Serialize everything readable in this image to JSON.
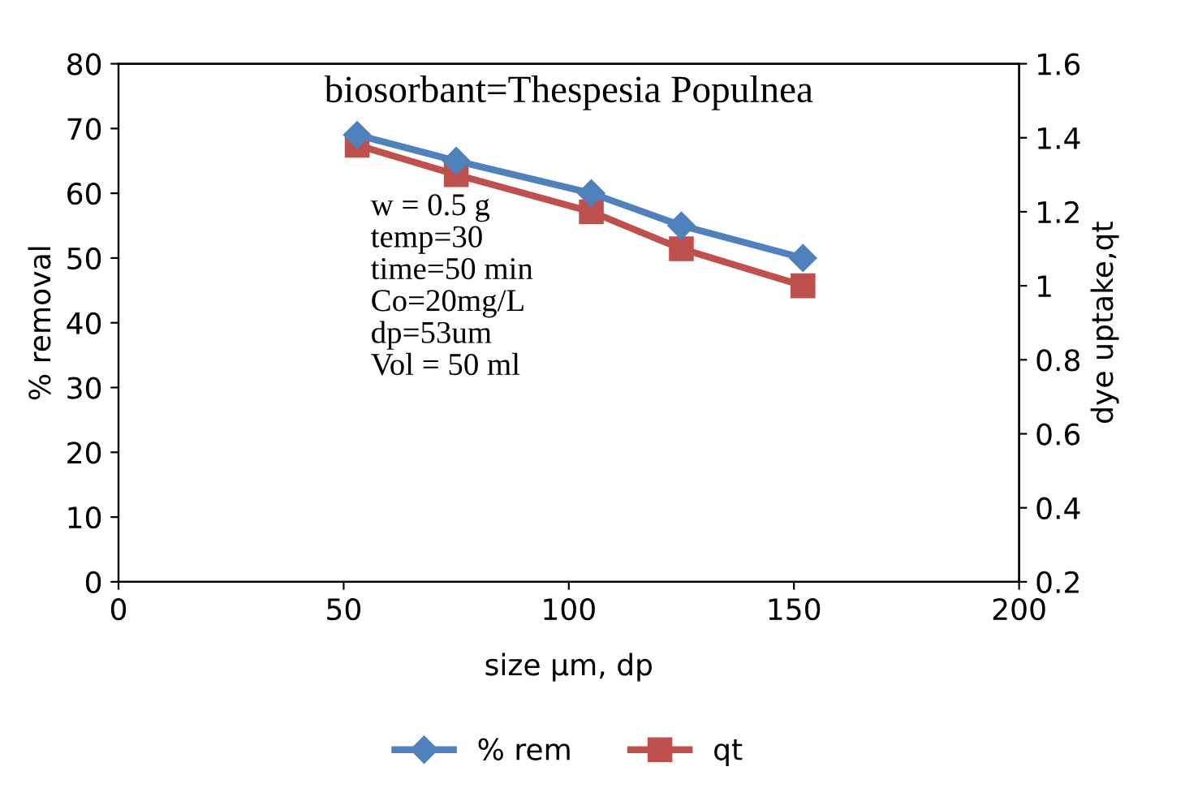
{
  "chart_data": {
    "type": "line",
    "title": "biosorbant=Thespesia Populnea",
    "xlabel": "size µm, dp",
    "ylabel": "% removal",
    "y2label": "dye uptake,qt",
    "x": [
      53,
      75,
      105,
      125,
      152
    ],
    "series": [
      {
        "name": "% rem",
        "color": "#4f81bd",
        "marker": "diamond",
        "values": [
          69,
          65,
          60,
          55,
          50
        ]
      },
      {
        "name": "qt",
        "color": "#c0504d",
        "marker": "square",
        "axis": "y2",
        "values": [
          1.38,
          1.3,
          1.2,
          1.1,
          1.0
        ]
      }
    ],
    "xlim": [
      0,
      200
    ],
    "xticks": [
      0,
      50,
      100,
      150,
      200
    ],
    "ylim": [
      0,
      80
    ],
    "yticks": [
      0,
      10,
      20,
      30,
      40,
      50,
      60,
      70,
      80
    ],
    "y2lim": [
      0.2,
      1.6
    ],
    "y2ticks": [
      0.2,
      0.4,
      0.6,
      0.8,
      1,
      1.2,
      1.4,
      1.6
    ],
    "annotations": [
      "w = 0.5 g\ntemp=30\ntime=50 min\nCo=20mg/L\ndp=53um\nVol = 50 ml"
    ],
    "grid": false,
    "legend": "bottom",
    "line_style": "solid"
  }
}
